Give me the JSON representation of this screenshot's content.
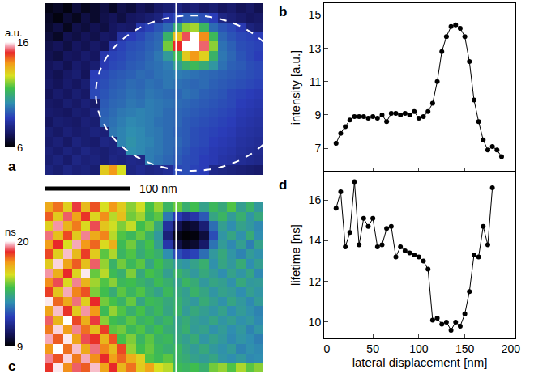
{
  "chart_data": [
    {
      "type": "heatmap",
      "panel": "a",
      "colorbar_title": "a.u.",
      "zlim": [
        6,
        16
      ],
      "colorbar_ticks": [
        6,
        16
      ],
      "xlim": [
        0,
        256
      ],
      "ylim": [
        0,
        210
      ],
      "tick_labels": false,
      "scan_x": 154,
      "outline": {
        "x": 172,
        "y": 110,
        "rx": 112,
        "ry": 95
      },
      "scale_bar": {
        "length": 100,
        "label": "100 nm"
      },
      "z": [
        [
          6.3,
          6.5,
          6.2,
          6.8,
          6.4,
          6.6,
          6.9,
          6.5,
          7.0,
          6.8,
          7.2,
          7.0,
          7.4,
          7.6,
          7.8,
          7.5,
          7.7,
          7.4,
          7.6,
          7.3,
          7.5,
          7.2,
          7.4,
          7.1
        ],
        [
          6.5,
          6.2,
          6.7,
          6.4,
          6.9,
          6.6,
          7.0,
          7.2,
          6.9,
          7.3,
          7.4,
          7.6,
          7.8,
          8.6,
          9.0,
          9.3,
          9.4,
          9.1,
          8.8,
          7.9,
          7.7,
          7.5,
          7.3,
          7.4
        ],
        [
          6.6,
          6.9,
          6.4,
          7.0,
          6.8,
          7.1,
          6.9,
          7.3,
          7.5,
          7.4,
          8.6,
          8.9,
          9.2,
          9.6,
          11.0,
          12.2,
          12.4,
          11.3,
          9.6,
          9.2,
          9.0,
          8.7,
          7.8,
          7.6
        ],
        [
          6.8,
          6.5,
          7.1,
          6.9,
          7.2,
          7.0,
          7.4,
          7.3,
          8.4,
          8.8,
          9.0,
          9.3,
          9.5,
          11.2,
          13.4,
          15.2,
          16.0,
          14.1,
          11.4,
          9.5,
          9.2,
          9.0,
          8.9,
          8.8
        ],
        [
          7.0,
          7.2,
          6.9,
          7.3,
          7.1,
          7.4,
          7.2,
          8.5,
          8.9,
          9.1,
          9.2,
          9.4,
          9.6,
          12.0,
          15.0,
          16.0,
          16.0,
          15.3,
          12.2,
          9.7,
          9.4,
          9.1,
          9.0,
          8.9
        ],
        [
          7.1,
          6.9,
          7.3,
          7.2,
          7.5,
          7.3,
          8.6,
          8.9,
          9.0,
          9.2,
          9.3,
          9.5,
          9.8,
          10.5,
          11.4,
          13.2,
          14.0,
          13.1,
          11.2,
          9.8,
          9.5,
          9.2,
          9.0,
          8.8
        ],
        [
          7.2,
          7.4,
          7.1,
          7.5,
          7.3,
          7.6,
          8.7,
          9.0,
          9.1,
          9.3,
          9.4,
          9.6,
          9.7,
          9.9,
          10.6,
          11.1,
          11.4,
          11.0,
          10.4,
          9.7,
          9.4,
          9.3,
          9.1,
          9.0
        ],
        [
          7.3,
          7.1,
          7.4,
          7.6,
          7.2,
          8.8,
          9.0,
          9.2,
          9.3,
          9.4,
          9.6,
          9.5,
          9.7,
          9.8,
          9.9,
          9.8,
          9.7,
          9.6,
          9.5,
          9.4,
          9.3,
          9.2,
          9.1,
          9.0
        ],
        [
          7.4,
          7.2,
          7.5,
          7.3,
          7.6,
          8.9,
          9.1,
          9.3,
          9.4,
          9.6,
          9.5,
          9.7,
          9.6,
          9.8,
          9.7,
          9.6,
          9.5,
          9.6,
          9.4,
          9.3,
          9.2,
          9.1,
          9.0,
          8.9
        ],
        [
          7.2,
          7.5,
          7.3,
          7.6,
          7.4,
          9.0,
          9.2,
          9.4,
          9.5,
          9.7,
          9.6,
          9.8,
          9.7,
          9.6,
          9.5,
          9.7,
          9.6,
          9.4,
          9.3,
          9.2,
          9.0,
          8.9,
          8.8,
          8.7
        ],
        [
          7.4,
          7.3,
          7.6,
          7.4,
          7.7,
          7.5,
          9.3,
          9.5,
          9.6,
          9.8,
          9.7,
          9.9,
          9.8,
          9.7,
          9.6,
          9.5,
          9.4,
          9.3,
          9.2,
          9.1,
          9.0,
          8.8,
          8.7,
          8.6
        ],
        [
          7.5,
          7.4,
          7.3,
          7.6,
          7.5,
          7.8,
          9.4,
          9.6,
          9.8,
          9.9,
          10.0,
          9.9,
          9.8,
          9.6,
          9.5,
          9.4,
          9.3,
          9.2,
          9.1,
          9.0,
          8.9,
          8.7,
          8.6,
          8.5
        ],
        [
          7.3,
          7.6,
          7.5,
          7.4,
          7.7,
          7.6,
          9.5,
          9.7,
          9.9,
          10.1,
          10.0,
          9.9,
          9.7,
          9.6,
          9.5,
          9.3,
          9.2,
          9.1,
          9.0,
          8.9,
          8.8,
          8.6,
          8.5,
          8.4
        ],
        [
          7.6,
          7.4,
          7.7,
          7.5,
          7.6,
          7.8,
          7.7,
          9.8,
          10.0,
          10.2,
          10.1,
          9.9,
          9.8,
          9.6,
          9.4,
          9.3,
          9.1,
          9.0,
          8.9,
          8.8,
          8.7,
          8.5,
          8.4,
          8.3
        ],
        [
          7.5,
          7.7,
          7.4,
          7.8,
          7.6,
          7.5,
          7.9,
          7.8,
          10.0,
          10.3,
          10.1,
          10.0,
          9.8,
          9.6,
          9.5,
          9.3,
          9.1,
          9.0,
          8.8,
          8.7,
          8.6,
          8.4,
          8.3,
          8.2
        ],
        [
          7.7,
          7.5,
          7.8,
          7.6,
          7.9,
          7.7,
          7.6,
          7.8,
          7.9,
          10.2,
          10.1,
          9.9,
          9.8,
          9.6,
          9.4,
          9.2,
          9.0,
          8.9,
          8.7,
          8.6,
          8.5,
          8.3,
          8.2,
          8.1
        ],
        [
          7.6,
          7.8,
          7.5,
          7.9,
          7.7,
          7.8,
          7.6,
          7.9,
          7.8,
          8.0,
          7.9,
          9.9,
          9.7,
          9.5,
          9.3,
          9.1,
          9.0,
          8.8,
          8.7,
          8.5,
          8.4,
          8.2,
          8.1,
          8.0
        ],
        [
          7.8,
          7.6,
          7.9,
          7.7,
          7.8,
          7.6,
          13.2,
          14.0,
          12.8,
          7.9,
          8.1,
          7.9,
          8.0,
          8.2,
          9.0,
          9.1,
          8.9,
          8.8,
          8.0,
          7.9,
          7.8,
          7.7,
          7.6,
          7.5
        ]
      ]
    },
    {
      "type": "heatmap",
      "panel": "c",
      "colorbar_title": "ns",
      "zlim": [
        9,
        20
      ],
      "colorbar_ticks": [
        9,
        20
      ],
      "xlim": [
        0,
        256
      ],
      "ylim": [
        0,
        210
      ],
      "tick_labels": false,
      "scan_x": 154,
      "z": [
        [
          17.5,
          18.2,
          16.8,
          19.0,
          17.2,
          18.5,
          16.5,
          17.8,
          16.9,
          15.8,
          16.4,
          15.2,
          15.9,
          14.8,
          15.5,
          14.6,
          15.1,
          14.2,
          14.9,
          14.4,
          15.3,
          14.1,
          14.7,
          13.9
        ],
        [
          18.4,
          16.9,
          19.2,
          17.6,
          18.8,
          16.7,
          17.9,
          16.2,
          17.1,
          15.6,
          16.0,
          14.9,
          15.4,
          13.2,
          12.0,
          11.4,
          11.8,
          12.6,
          14.3,
          14.8,
          14.0,
          14.6,
          13.8,
          14.4
        ],
        [
          16.8,
          19.5,
          17.3,
          18.1,
          16.6,
          19.1,
          17.0,
          16.4,
          15.7,
          16.3,
          15.1,
          15.6,
          14.4,
          11.6,
          10.2,
          9.6,
          9.8,
          10.8,
          13.0,
          14.1,
          13.6,
          14.2,
          13.9,
          13.5
        ],
        [
          19.3,
          17.1,
          18.6,
          16.9,
          19.4,
          17.5,
          18.0,
          16.2,
          15.3,
          14.9,
          15.5,
          14.7,
          13.9,
          10.9,
          9.4,
          9.1,
          9.2,
          9.9,
          12.4,
          13.8,
          14.3,
          13.7,
          14.5,
          13.6
        ],
        [
          17.7,
          18.9,
          16.5,
          19.6,
          17.8,
          18.3,
          16.6,
          17.4,
          15.0,
          15.6,
          14.6,
          15.2,
          14.1,
          11.8,
          10.1,
          9.5,
          9.7,
          10.6,
          13.1,
          14.0,
          13.5,
          14.1,
          13.3,
          14.2
        ],
        [
          18.6,
          16.8,
          19.7,
          17.2,
          18.7,
          16.9,
          15.4,
          16.1,
          14.8,
          15.3,
          14.5,
          15.0,
          14.6,
          13.6,
          12.4,
          11.9,
          12.2,
          13.0,
          13.9,
          14.4,
          13.8,
          13.4,
          14.0,
          13.7
        ],
        [
          16.9,
          19.8,
          17.6,
          18.4,
          17.1,
          19.2,
          15.9,
          14.7,
          15.6,
          14.9,
          15.4,
          14.3,
          15.1,
          14.5,
          14.0,
          13.8,
          14.2,
          14.6,
          13.7,
          14.3,
          13.9,
          14.5,
          13.6,
          14.1
        ],
        [
          19.5,
          17.4,
          18.9,
          16.7,
          19.9,
          15.5,
          16.2,
          15.0,
          14.6,
          15.7,
          14.4,
          15.2,
          14.8,
          14.1,
          14.7,
          14.3,
          13.9,
          14.4,
          14.0,
          13.6,
          14.2,
          13.8,
          14.3,
          13.5
        ],
        [
          17.9,
          19.1,
          16.6,
          19.4,
          17.3,
          16.0,
          15.3,
          15.8,
          14.9,
          15.1,
          14.7,
          14.4,
          15.0,
          14.6,
          14.2,
          14.8,
          14.5,
          13.9,
          14.3,
          14.1,
          13.7,
          14.4,
          13.9,
          14.0
        ],
        [
          18.7,
          17.0,
          19.6,
          18.0,
          18.5,
          15.7,
          15.1,
          14.5,
          15.4,
          14.8,
          15.3,
          14.6,
          14.2,
          14.9,
          14.4,
          14.1,
          14.7,
          14.3,
          13.8,
          14.2,
          14.0,
          13.6,
          14.1,
          13.8
        ],
        [
          19.9,
          18.3,
          17.5,
          19.3,
          16.8,
          18.9,
          15.6,
          15.2,
          14.7,
          15.5,
          14.3,
          15.0,
          14.8,
          14.4,
          14.6,
          14.2,
          13.9,
          14.5,
          14.1,
          13.7,
          14.3,
          13.9,
          13.5,
          14.0
        ],
        [
          17.6,
          19.7,
          18.8,
          16.9,
          19.5,
          17.8,
          15.0,
          15.9,
          15.3,
          14.6,
          15.2,
          14.5,
          14.9,
          14.3,
          14.7,
          14.0,
          14.4,
          14.1,
          13.8,
          14.2,
          13.6,
          14.0,
          13.7,
          13.4
        ],
        [
          19.2,
          17.3,
          20.0,
          18.6,
          17.4,
          19.0,
          15.8,
          15.1,
          14.8,
          15.4,
          14.7,
          15.0,
          14.4,
          14.8,
          14.2,
          14.5,
          14.1,
          13.9,
          14.3,
          13.8,
          14.1,
          13.7,
          13.9,
          13.5
        ],
        [
          18.1,
          19.8,
          17.7,
          19.4,
          18.2,
          17.1,
          18.7,
          15.4,
          15.6,
          14.9,
          15.3,
          14.6,
          15.1,
          14.5,
          14.3,
          14.6,
          14.0,
          14.2,
          13.7,
          14.0,
          13.6,
          13.9,
          13.4,
          13.8
        ],
        [
          19.6,
          18.4,
          19.9,
          17.6,
          19.1,
          18.8,
          17.3,
          18.5,
          15.2,
          15.7,
          14.8,
          15.4,
          14.7,
          14.9,
          14.4,
          14.1,
          14.5,
          13.8,
          14.2,
          13.9,
          13.5,
          13.8,
          13.6,
          13.3
        ],
        [
          17.8,
          20.0,
          18.2,
          19.7,
          17.5,
          19.3,
          18.0,
          17.2,
          18.6,
          15.9,
          15.1,
          15.5,
          14.9,
          14.6,
          14.8,
          14.3,
          14.0,
          14.4,
          13.9,
          13.7,
          14.0,
          13.4,
          13.7,
          13.5
        ],
        [
          19.4,
          18.5,
          19.8,
          18.1,
          19.6,
          17.9,
          18.9,
          17.7,
          18.3,
          17.4,
          16.8,
          15.3,
          15.0,
          15.4,
          14.7,
          14.5,
          14.2,
          14.0,
          14.3,
          13.8,
          13.6,
          13.9,
          13.5,
          13.6
        ],
        [
          18.8,
          19.9,
          17.9,
          19.2,
          18.4,
          19.7,
          17.6,
          18.9,
          17.3,
          18.2,
          16.9,
          17.6,
          16.5,
          16.2,
          15.0,
          14.8,
          15.1,
          14.6,
          15.6,
          15.9,
          15.3,
          16.1,
          15.4,
          15.8
        ]
      ]
    },
    {
      "type": "line",
      "panel": "b",
      "ylabel": "intensity [a.u.]",
      "color": "#000000",
      "marker": "circle",
      "grid": false,
      "xlim": [
        -3,
        205
      ],
      "xticks": [
        0,
        50,
        100,
        150,
        200
      ],
      "ylim": [
        5.6,
        15.7
      ],
      "yticks": [
        7,
        9,
        11,
        13,
        15
      ],
      "tick_labels": "y",
      "x": [
        10,
        15,
        20,
        25,
        30,
        35,
        40,
        45,
        50,
        55,
        60,
        65,
        70,
        75,
        80,
        85,
        90,
        95,
        100,
        105,
        110,
        115,
        120,
        125,
        130,
        135,
        140,
        145,
        150,
        155,
        160,
        165,
        170,
        175,
        180,
        185,
        190
      ],
      "values": [
        7.3,
        7.9,
        8.3,
        8.7,
        8.9,
        8.9,
        8.9,
        8.8,
        8.9,
        8.8,
        9.0,
        8.6,
        9.1,
        9.1,
        9.0,
        9.1,
        9.0,
        9.2,
        8.8,
        8.9,
        9.2,
        9.7,
        11.0,
        12.8,
        13.7,
        14.3,
        14.4,
        14.2,
        13.7,
        12.2,
        9.9,
        8.6,
        7.5,
        6.9,
        7.1,
        6.9,
        6.5
      ]
    },
    {
      "type": "line",
      "panel": "d",
      "xlabel": "lateral displacement [nm]",
      "ylabel": "lifetime [ns]",
      "color": "#000000",
      "marker": "circle",
      "grid": false,
      "xlim": [
        -3,
        205
      ],
      "xticks": [
        0,
        50,
        100,
        150,
        200
      ],
      "ylim": [
        9.2,
        17.4
      ],
      "yticks": [
        10,
        12,
        14,
        16
      ],
      "x": [
        10,
        15,
        20,
        25,
        30,
        35,
        40,
        45,
        50,
        55,
        60,
        65,
        70,
        75,
        80,
        85,
        90,
        95,
        100,
        105,
        110,
        115,
        120,
        125,
        130,
        135,
        140,
        145,
        150,
        155,
        160,
        165,
        170,
        175,
        180
      ],
      "values": [
        15.6,
        16.4,
        13.7,
        14.4,
        16.9,
        13.8,
        15.1,
        14.7,
        15.1,
        13.7,
        13.8,
        14.6,
        14.7,
        13.2,
        13.7,
        13.5,
        13.4,
        13.3,
        13.2,
        13.0,
        12.6,
        10.1,
        10.2,
        9.9,
        10.0,
        9.6,
        10.0,
        9.8,
        10.4,
        11.5,
        13.3,
        13.2,
        14.7,
        13.8,
        16.6
      ]
    }
  ]
}
